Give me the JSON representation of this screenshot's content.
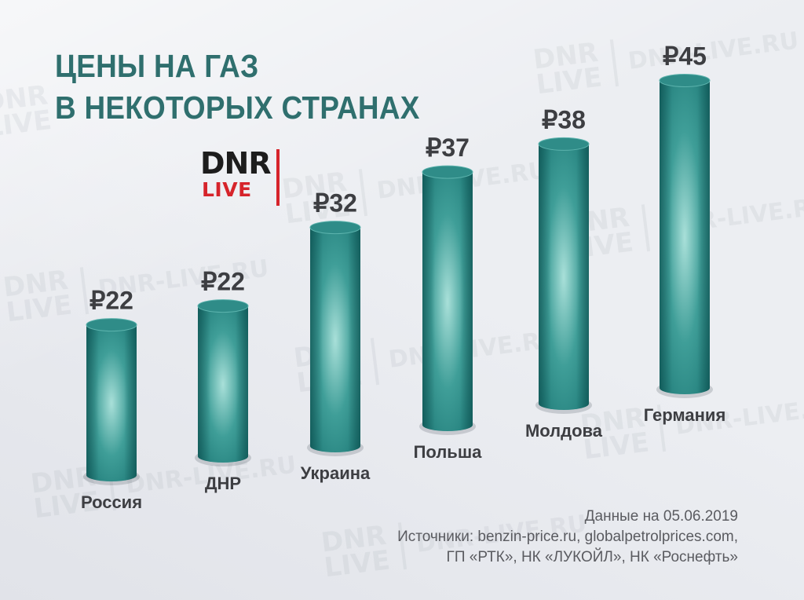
{
  "title_lines": [
    "ЦЕНЫ НА ГАЗ",
    "В НЕКОТОРЫХ СТРАНАХ"
  ],
  "logo": {
    "word": "DNR",
    "sub": "LIVE"
  },
  "watermark": {
    "mark_line1": "DNR",
    "mark_line2": "LIVE",
    "site": "DNR-LIVE.RU"
  },
  "footer": {
    "date_line": "Данные на 05.06.2019",
    "sources_line1": "Источники: benzin-price.ru, globalpetrolprices.com,",
    "sources_line2": "ГП «РТК», НК «ЛУКОЙЛ», НК «Роснефть»"
  },
  "colors": {
    "title": "#2f6f6e",
    "bar_dark": "#17716f",
    "bar_light": "#a9e0d9",
    "text": "#3d3e42",
    "logo_red": "#d6242b"
  },
  "chart_data": {
    "type": "bar",
    "style": "3d-cylinder",
    "currency_symbol": "₽",
    "categories": [
      "Россия",
      "ДНР",
      "Украина",
      "Польша",
      "Молдова",
      "Германия"
    ],
    "values": [
      22,
      22,
      32,
      37,
      38,
      45
    ],
    "value_labels": [
      "₽22",
      "₽22",
      "₽32",
      "₽37",
      "₽38",
      "₽45"
    ],
    "title": "ЦЕНЫ НА ГАЗ В НЕКОТОРЫХ СТРАНАХ",
    "grid": false,
    "legend": false
  }
}
